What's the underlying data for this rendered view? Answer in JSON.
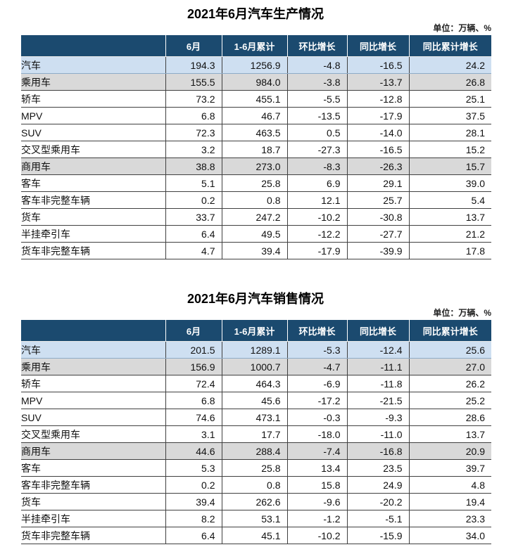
{
  "colors": {
    "header_bg": "#1b4a6f",
    "header_text": "#ffffff",
    "row_highlight_blue": "#cedff1",
    "row_highlight_gray": "#d9d9d9",
    "grid_line": "#404040",
    "blue_row_border": "#8eabc8",
    "body_text": "#111111"
  },
  "chart_data": [
    {
      "type": "table",
      "title": "2021年6月汽车生产情况",
      "unit": "单位：万辆、%",
      "columns": [
        "",
        "6月",
        "1-6月累计",
        "环比增长",
        "同比增长",
        "同比累计增长"
      ],
      "rows": [
        {
          "label": "汽车",
          "indent": 0,
          "highlight": "blue",
          "values": [
            "194.3",
            "1256.9",
            "-4.8",
            "-16.5",
            "24.2"
          ]
        },
        {
          "label": "乘用车",
          "indent": 1,
          "highlight": "gray",
          "values": [
            "155.5",
            "984.0",
            "-3.8",
            "-13.7",
            "26.8"
          ]
        },
        {
          "label": "轿车",
          "indent": 2,
          "highlight": "none",
          "values": [
            "73.2",
            "455.1",
            "-5.5",
            "-12.8",
            "25.1"
          ]
        },
        {
          "label": "MPV",
          "indent": 2,
          "highlight": "none",
          "values": [
            "6.8",
            "46.7",
            "-13.5",
            "-17.9",
            "37.5"
          ]
        },
        {
          "label": "SUV",
          "indent": 2,
          "highlight": "none",
          "values": [
            "72.3",
            "463.5",
            "0.5",
            "-14.0",
            "28.1"
          ]
        },
        {
          "label": "交叉型乘用车",
          "indent": 2,
          "highlight": "none",
          "values": [
            "3.2",
            "18.7",
            "-27.3",
            "-16.5",
            "15.2"
          ]
        },
        {
          "label": "商用车",
          "indent": 1,
          "highlight": "gray",
          "values": [
            "38.8",
            "273.0",
            "-8.3",
            "-26.3",
            "15.7"
          ]
        },
        {
          "label": "客车",
          "indent": 2,
          "highlight": "none",
          "values": [
            "5.1",
            "25.8",
            "6.9",
            "29.1",
            "39.0"
          ]
        },
        {
          "label": "客车非完整车辆",
          "indent": 3,
          "highlight": "none",
          "values": [
            "0.2",
            "0.8",
            "12.1",
            "25.7",
            "5.4"
          ]
        },
        {
          "label": "货车",
          "indent": 2,
          "highlight": "none",
          "values": [
            "33.7",
            "247.2",
            "-10.2",
            "-30.8",
            "13.7"
          ]
        },
        {
          "label": "半挂牵引车",
          "indent": 3,
          "highlight": "none",
          "values": [
            "6.4",
            "49.5",
            "-12.2",
            "-27.7",
            "21.2"
          ]
        },
        {
          "label": "货车非完整车辆",
          "indent": 3,
          "highlight": "none",
          "values": [
            "4.7",
            "39.4",
            "-17.9",
            "-39.9",
            "17.8"
          ]
        }
      ]
    },
    {
      "type": "table",
      "title": "2021年6月汽车销售情况",
      "unit": "单位：万辆、%",
      "columns": [
        "",
        "6月",
        "1-6月累计",
        "环比增长",
        "同比增长",
        "同比累计增长"
      ],
      "rows": [
        {
          "label": "汽车",
          "indent": 0,
          "highlight": "blue",
          "values": [
            "201.5",
            "1289.1",
            "-5.3",
            "-12.4",
            "25.6"
          ]
        },
        {
          "label": "乘用车",
          "indent": 1,
          "highlight": "gray",
          "values": [
            "156.9",
            "1000.7",
            "-4.7",
            "-11.1",
            "27.0"
          ]
        },
        {
          "label": "轿车",
          "indent": 2,
          "highlight": "none",
          "values": [
            "72.4",
            "464.3",
            "-6.9",
            "-11.8",
            "26.2"
          ]
        },
        {
          "label": "MPV",
          "indent": 2,
          "highlight": "none",
          "values": [
            "6.8",
            "45.6",
            "-17.2",
            "-21.5",
            "25.2"
          ]
        },
        {
          "label": "SUV",
          "indent": 2,
          "highlight": "none",
          "values": [
            "74.6",
            "473.1",
            "-0.3",
            "-9.3",
            "28.6"
          ]
        },
        {
          "label": "交叉型乘用车",
          "indent": 2,
          "highlight": "none",
          "values": [
            "3.1",
            "17.7",
            "-18.0",
            "-11.0",
            "13.7"
          ]
        },
        {
          "label": "商用车",
          "indent": 1,
          "highlight": "gray",
          "values": [
            "44.6",
            "288.4",
            "-7.4",
            "-16.8",
            "20.9"
          ]
        },
        {
          "label": "客车",
          "indent": 2,
          "highlight": "none",
          "values": [
            "5.3",
            "25.8",
            "13.4",
            "23.5",
            "39.7"
          ]
        },
        {
          "label": "客车非完整车辆",
          "indent": 3,
          "highlight": "none",
          "values": [
            "0.2",
            "0.8",
            "15.8",
            "24.9",
            "4.8"
          ]
        },
        {
          "label": "货车",
          "indent": 2,
          "highlight": "none",
          "values": [
            "39.4",
            "262.6",
            "-9.6",
            "-20.2",
            "19.4"
          ]
        },
        {
          "label": "半挂牵引车",
          "indent": 3,
          "highlight": "none",
          "values": [
            "8.2",
            "53.1",
            "-1.2",
            "-5.1",
            "23.3"
          ]
        },
        {
          "label": "货车非完整车辆",
          "indent": 3,
          "highlight": "none",
          "values": [
            "6.4",
            "45.1",
            "-10.2",
            "-15.9",
            "34.0"
          ]
        }
      ]
    }
  ]
}
